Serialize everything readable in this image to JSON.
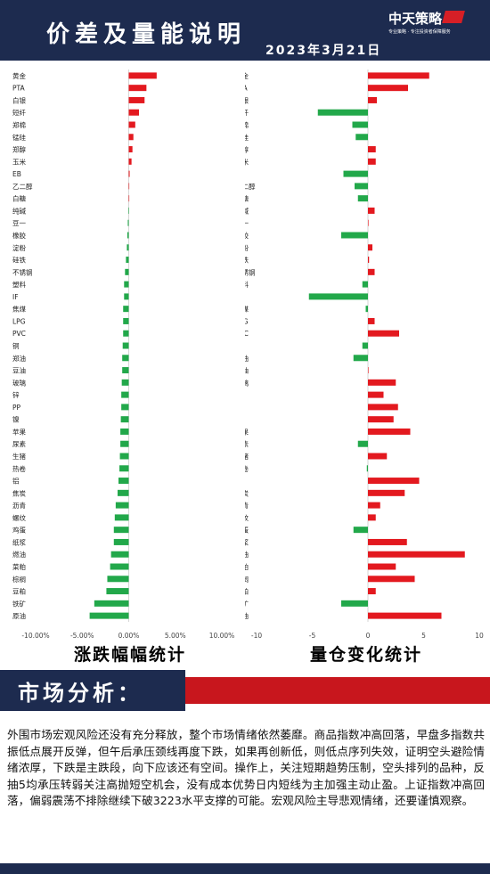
{
  "header": {
    "title": "价差及量能说明",
    "date": "2023年3月21日",
    "logo": {
      "text": "中天策略",
      "subtitle": "专业策略 · 专注投资者保障服务"
    }
  },
  "colors": {
    "navy": "#1d2b4f",
    "red": "#e3191f",
    "green": "#22a84a",
    "accent_red": "#c8161d"
  },
  "chart_data": [
    {
      "type": "bar",
      "orientation": "horizontal",
      "categories": [
        "黄金",
        "PTA",
        "白银",
        "短纤",
        "郑棉",
        "锰硅",
        "郑醇",
        "玉米",
        "EB",
        "乙二醇",
        "白糖",
        "纯碱",
        "豆一",
        "橡胶",
        "淀粉",
        "硅铁",
        "不锈钢",
        "塑料",
        "IF",
        "焦煤",
        "LPG",
        "PVC",
        "铜",
        "郑油",
        "豆油",
        "玻璃",
        "锌",
        "PP",
        "镍",
        "苹果",
        "尿素",
        "生猪",
        "热卷",
        "铝",
        "焦炭",
        "沥青",
        "螺纹",
        "鸡蛋",
        "纸浆",
        "燃油",
        "菜粕",
        "棕榈",
        "豆粕",
        "铁矿",
        "原油"
      ],
      "values": [
        3.0,
        1.9,
        1.7,
        1.1,
        0.7,
        0.5,
        0.4,
        0.3,
        0.1,
        0.05,
        0.0,
        -0.05,
        -0.1,
        -0.15,
        -0.2,
        -0.3,
        -0.4,
        -0.5,
        -0.5,
        -0.6,
        -0.6,
        -0.6,
        -0.65,
        -0.7,
        -0.7,
        -0.75,
        -0.8,
        -0.8,
        -0.85,
        -0.9,
        -0.9,
        -0.95,
        -1.0,
        -1.1,
        -1.2,
        -1.4,
        -1.5,
        -1.6,
        -1.6,
        -1.9,
        -2.0,
        -2.3,
        -2.4,
        -3.7,
        -4.2
      ],
      "xlim": [
        -10,
        10
      ],
      "xticks": [
        "-10.00%",
        "-5.00%",
        "0.00%",
        "5.00%",
        "10.00%"
      ],
      "title": "涨跌幅幅统计"
    },
    {
      "type": "bar",
      "orientation": "horizontal",
      "categories": [
        "黄金",
        "PTA",
        "白银",
        "短纤",
        "郑棉",
        "锰硅",
        "郑醇",
        "玉米",
        "EB",
        "乙二醇",
        "白糖",
        "纯碱",
        "豆一",
        "橡胶",
        "淀粉",
        "硅铁",
        "不锈钢",
        "塑料",
        "IF",
        "焦煤",
        "LPG",
        "PVC",
        "铜",
        "郑油",
        "豆油",
        "玻璃",
        "锌",
        "PP",
        "镍",
        "苹果",
        "尿素",
        "生猪",
        "热卷",
        "铝",
        "焦炭",
        "沥青",
        "螺纹",
        "鸡蛋",
        "纸浆",
        "燃油",
        "菜粕",
        "棕榈",
        "豆粕",
        "铁矿",
        "原油"
      ],
      "values": [
        5.5,
        3.6,
        0.8,
        -4.5,
        -1.4,
        -1.1,
        0.7,
        0.7,
        -2.2,
        -1.2,
        -0.9,
        0.6,
        0.0,
        -2.4,
        0.4,
        0.1,
        0.6,
        -0.5,
        -5.3,
        -0.2,
        0.6,
        2.8,
        -0.5,
        -1.3,
        0.0,
        2.5,
        1.4,
        2.7,
        2.3,
        3.8,
        -0.9,
        1.7,
        -0.1,
        4.6,
        3.3,
        1.1,
        0.7,
        -1.3,
        3.5,
        8.7,
        2.5,
        4.2,
        0.7,
        -2.4,
        6.6
      ],
      "xlim": [
        -10,
        10
      ],
      "xticks": [
        "-10",
        "-5",
        "0",
        "5",
        "10"
      ],
      "title": "量仓变化统计"
    }
  ],
  "section": {
    "title": "市场分析："
  },
  "analysis": "外围市场宏观风险还没有充分释放，整个市场情绪依然萎靡。商品指数冲高回落，早盘多指数共振低点展开反弹，但午后承压颈线再度下跌，如果再创新低，则低点序列失效，证明空头避险情绪浓厚，下跌是主跌段，向下应该还有空间。操作上，关注短期趋势压制，空头排列的品种，反抽5均承压转弱关注高抛短空机会，没有成本优势日内短线为主加强主动止盈。上证指数冲高回落，偏弱震荡不排除继续下破3223水平支撑的可能。宏观风险主导悲观情绪，还要谨慎观察。"
}
